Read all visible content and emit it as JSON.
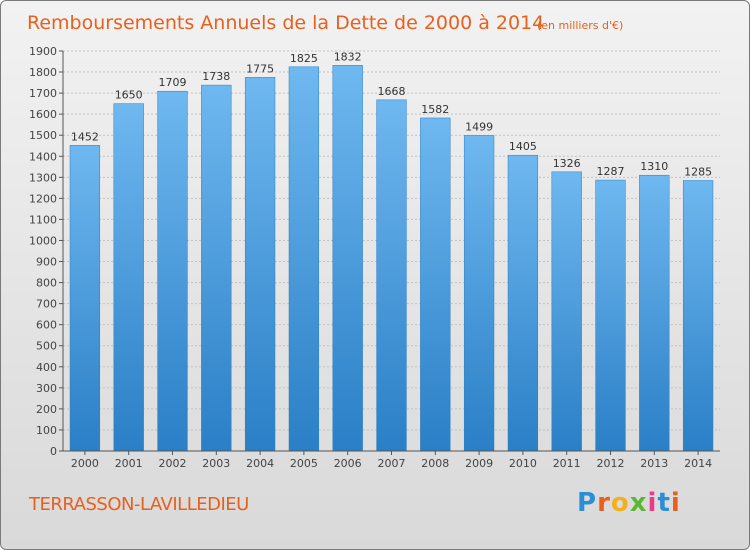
{
  "chart_data": {
    "type": "bar",
    "title": "Remboursements Annuels de la Dette de 2000 à 2014",
    "unit_note": "(en milliers d'€)",
    "categories": [
      "2000",
      "2001",
      "2002",
      "2003",
      "2004",
      "2005",
      "2006",
      "2007",
      "2008",
      "2009",
      "2010",
      "2011",
      "2012",
      "2013",
      "2014"
    ],
    "values": [
      1452,
      1650,
      1709,
      1738,
      1775,
      1825,
      1832,
      1668,
      1582,
      1499,
      1405,
      1326,
      1287,
      1310,
      1285
    ],
    "ylim": [
      0,
      1900
    ],
    "yticks": [
      0,
      100,
      200,
      300,
      400,
      500,
      600,
      700,
      800,
      900,
      1000,
      1100,
      1200,
      1300,
      1400,
      1500,
      1600,
      1700,
      1800,
      1900
    ],
    "xlabel": "",
    "ylabel": "",
    "grid": true,
    "bar_color": "#5aa9e8",
    "bar_color_dark": "#2a7fc6"
  },
  "footer": {
    "place_name": "TERRASSON-LAVILLEDIEU",
    "logo_letters": [
      "P",
      "r",
      "o",
      "x",
      "i",
      "t",
      "i"
    ],
    "logo_colors": [
      "#2b8fd6",
      "#e8601c",
      "#f2b01e",
      "#5cb82e",
      "#e83c8a",
      "#2b8fd6",
      "#e8601c"
    ]
  }
}
